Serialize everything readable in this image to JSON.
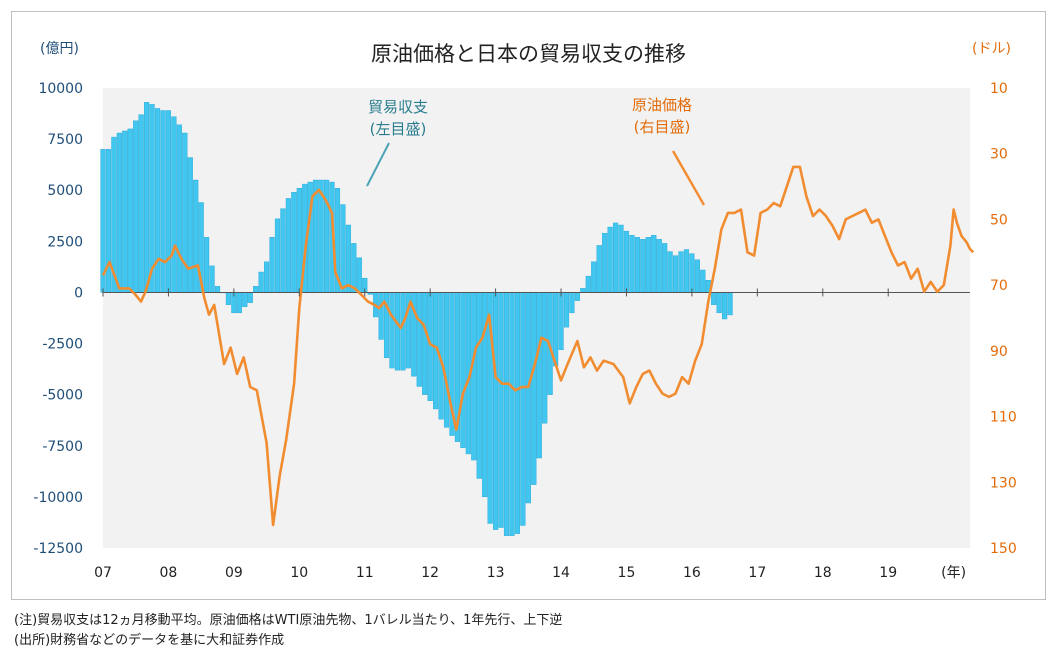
{
  "title": "原油価格と日本の貿易収支の推移",
  "left_unit": "(億円)",
  "right_unit": "(ドル)",
  "notes": {
    "note1": "(注)貿易収支は12ヵ月移動平均。原油価格はWTI原油先物、1バレル当たり、1年先行、上下逆",
    "note2": "(出所)財務省などのデータを基に大和証券作成"
  },
  "colors": {
    "bar": "#41c6f0",
    "bar_edge": "#1a9fd0",
    "oil": "#f28c30",
    "plot_bg": "#f2f2f2",
    "left_tick": "#1f4e79",
    "right_tick": "#e36c09",
    "balance_label": "#2a7d8f",
    "oil_label": "#e36c09"
  },
  "chart_data": {
    "type": "bar+line",
    "title": "原油価格と日本の貿易収支の推移",
    "x_unit_label": "(年)",
    "x_tick_labels": [
      "07",
      "08",
      "09",
      "10",
      "11",
      "12",
      "13",
      "14",
      "15",
      "16",
      "17",
      "18",
      "19"
    ],
    "x_range_years": [
      2007.0,
      2020.25
    ],
    "left_axis": {
      "label": "(億円)",
      "min": -12500,
      "max": 10000,
      "ticks": [
        10000,
        7500,
        5000,
        2500,
        0,
        -2500,
        -5000,
        -7500,
        -10000,
        -12500
      ]
    },
    "right_axis": {
      "label": "(ドル)",
      "inverted": true,
      "min": 10,
      "max": 150,
      "ticks": [
        10,
        30,
        50,
        70,
        90,
        110,
        130,
        150
      ]
    },
    "annotations": [
      {
        "text_line1": "貿易収支",
        "text_line2": "(左目盛)",
        "series": "貿易収支"
      },
      {
        "text_line1": "原油価格",
        "text_line2": "(右目盛)",
        "series": "原油価格"
      }
    ],
    "series": [
      {
        "name": "貿易収支",
        "type": "bar",
        "axis": "left",
        "start_year": 2007.0,
        "step_months": 1,
        "values": [
          7000,
          7000,
          7600,
          7800,
          7900,
          8000,
          8400,
          8700,
          9300,
          9200,
          9000,
          8900,
          8900,
          8600,
          8200,
          7800,
          6600,
          5500,
          4400,
          2700,
          1300,
          300,
          0,
          -600,
          -1000,
          -1000,
          -700,
          -500,
          300,
          1000,
          1500,
          2700,
          3600,
          4100,
          4600,
          4900,
          5100,
          5300,
          5400,
          5500,
          5500,
          5500,
          5400,
          5100,
          4300,
          3300,
          2400,
          1700,
          700,
          -100,
          -1200,
          -2300,
          -3200,
          -3700,
          -3800,
          -3800,
          -3700,
          -4100,
          -4600,
          -5000,
          -5300,
          -5700,
          -6200,
          -6600,
          -7000,
          -7300,
          -7600,
          -7900,
          -8200,
          -9100,
          -10000,
          -11300,
          -11600,
          -11500,
          -11900,
          -11900,
          -11800,
          -11400,
          -10300,
          -9400,
          -8100,
          -6400,
          -5000,
          -3600,
          -2800,
          -1700,
          -1000,
          -400,
          200,
          800,
          1500,
          2300,
          2900,
          3200,
          3400,
          3300,
          3000,
          2800,
          2700,
          2600,
          2700,
          2800,
          2600,
          2400,
          2000,
          1800,
          2000,
          2100,
          1900,
          1600,
          1100,
          600,
          -600,
          -1000,
          -1300,
          -1100
        ],
        "value_unit": "億円"
      },
      {
        "name": "原油価格",
        "type": "line",
        "axis": "right",
        "value_unit": "ドル",
        "points": [
          [
            2007.0,
            67
          ],
          [
            2007.1,
            63
          ],
          [
            2007.25,
            71
          ],
          [
            2007.4,
            71
          ],
          [
            2007.5,
            73
          ],
          [
            2007.58,
            75
          ],
          [
            2007.65,
            72
          ],
          [
            2007.75,
            65
          ],
          [
            2007.85,
            62
          ],
          [
            2007.95,
            63
          ],
          [
            2008.05,
            61
          ],
          [
            2008.1,
            58
          ],
          [
            2008.2,
            62
          ],
          [
            2008.3,
            65
          ],
          [
            2008.45,
            64
          ],
          [
            2008.55,
            74
          ],
          [
            2008.62,
            79
          ],
          [
            2008.7,
            76
          ],
          [
            2008.85,
            94
          ],
          [
            2008.95,
            89
          ],
          [
            2009.05,
            97
          ],
          [
            2009.15,
            92
          ],
          [
            2009.25,
            101
          ],
          [
            2009.35,
            102
          ],
          [
            2009.5,
            118
          ],
          [
            2009.6,
            143
          ],
          [
            2009.7,
            128
          ],
          [
            2009.8,
            117
          ],
          [
            2009.92,
            100
          ],
          [
            2010.0,
            77
          ],
          [
            2010.1,
            58
          ],
          [
            2010.2,
            43
          ],
          [
            2010.3,
            41
          ],
          [
            2010.4,
            44
          ],
          [
            2010.5,
            48
          ],
          [
            2010.55,
            66
          ],
          [
            2010.65,
            71
          ],
          [
            2010.75,
            70
          ],
          [
            2010.85,
            71
          ],
          [
            2010.95,
            73
          ],
          [
            2011.05,
            75
          ],
          [
            2011.15,
            76
          ],
          [
            2011.22,
            77
          ],
          [
            2011.3,
            75
          ],
          [
            2011.4,
            79
          ],
          [
            2011.55,
            83
          ],
          [
            2011.62,
            80
          ],
          [
            2011.7,
            75
          ],
          [
            2011.8,
            80
          ],
          [
            2011.9,
            82
          ],
          [
            2012.0,
            88
          ],
          [
            2012.1,
            89
          ],
          [
            2012.2,
            95
          ],
          [
            2012.3,
            105
          ],
          [
            2012.4,
            114
          ],
          [
            2012.5,
            103
          ],
          [
            2012.6,
            98
          ],
          [
            2012.7,
            89
          ],
          [
            2012.8,
            86
          ],
          [
            2012.9,
            79
          ],
          [
            2013.0,
            98
          ],
          [
            2013.1,
            100
          ],
          [
            2013.2,
            100
          ],
          [
            2013.3,
            102
          ],
          [
            2013.4,
            101
          ],
          [
            2013.5,
            101
          ],
          [
            2013.6,
            94
          ],
          [
            2013.7,
            86
          ],
          [
            2013.8,
            87
          ],
          [
            2013.9,
            93
          ],
          [
            2014.0,
            99
          ],
          [
            2014.1,
            94
          ],
          [
            2014.25,
            87
          ],
          [
            2014.35,
            95
          ],
          [
            2014.45,
            92
          ],
          [
            2014.55,
            96
          ],
          [
            2014.65,
            93
          ],
          [
            2014.8,
            94
          ],
          [
            2014.95,
            98
          ],
          [
            2015.05,
            106
          ],
          [
            2015.15,
            101
          ],
          [
            2015.25,
            97
          ],
          [
            2015.35,
            96
          ],
          [
            2015.45,
            100
          ],
          [
            2015.55,
            103
          ],
          [
            2015.65,
            104
          ],
          [
            2015.75,
            103
          ],
          [
            2015.85,
            98
          ],
          [
            2015.95,
            100
          ],
          [
            2016.05,
            93
          ],
          [
            2016.15,
            88
          ],
          [
            2016.25,
            75
          ],
          [
            2016.35,
            65
          ],
          [
            2016.45,
            53
          ],
          [
            2016.55,
            48
          ],
          [
            2016.65,
            48
          ],
          [
            2016.75,
            47
          ],
          [
            2016.85,
            60
          ],
          [
            2016.95,
            61
          ],
          [
            2017.05,
            48
          ],
          [
            2017.15,
            47
          ],
          [
            2017.25,
            45
          ],
          [
            2017.35,
            46
          ],
          [
            2017.45,
            40
          ],
          [
            2017.55,
            34
          ],
          [
            2017.65,
            34
          ],
          [
            2017.75,
            43
          ],
          [
            2017.85,
            49
          ],
          [
            2017.95,
            47
          ],
          [
            2018.05,
            49
          ],
          [
            2018.15,
            52
          ],
          [
            2018.25,
            56
          ],
          [
            2018.35,
            50
          ],
          [
            2018.45,
            49
          ],
          [
            2018.55,
            48
          ],
          [
            2018.65,
            47
          ],
          [
            2018.75,
            51
          ],
          [
            2018.85,
            50
          ],
          [
            2018.95,
            55
          ],
          [
            2019.05,
            60
          ],
          [
            2019.15,
            64
          ],
          [
            2019.25,
            63
          ],
          [
            2019.35,
            68
          ],
          [
            2019.45,
            65
          ],
          [
            2019.55,
            72
          ],
          [
            2019.65,
            69
          ],
          [
            2019.75,
            72
          ],
          [
            2019.85,
            70
          ],
          [
            2019.95,
            58
          ],
          [
            2020.0,
            47
          ],
          [
            2020.05,
            51
          ],
          [
            2020.12,
            55
          ],
          [
            2020.2,
            57
          ],
          [
            2020.25,
            59
          ],
          [
            2020.3,
            60
          ]
        ]
      }
    ]
  }
}
